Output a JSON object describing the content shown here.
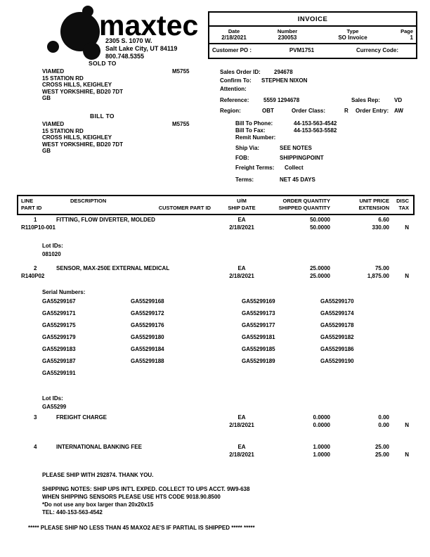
{
  "logo": {
    "brand": "maxtec",
    "address_line1": "2305 S. 1070 W.",
    "address_line2": "Salt Lake City, UT 84119",
    "phone": "800.748.5355"
  },
  "invoice_box": {
    "title": "INVOICE",
    "date_label": "Date",
    "date": "2/18/2021",
    "number_label": "Number",
    "number": "230053",
    "type_label": "Type",
    "type": "SO Invoice",
    "page_label": "Page",
    "page": "1",
    "customer_po_label": "Customer PO :",
    "customer_po": "PVM1751",
    "currency_code_label": "Currency Code:",
    "currency_code": ""
  },
  "sold_to": {
    "heading": "SOLD TO",
    "name": "VIAMED",
    "address": [
      "15 STATION RD",
      "CROSS HILLS, KEIGHLEY",
      "WEST YORKSHIRE, BD20 7DT",
      "GB"
    ],
    "code": "M5755"
  },
  "bill_to": {
    "heading": "BILL TO",
    "name": "VIAMED",
    "address": [
      "15 STATION RD",
      "CROSS HILLS, KEIGHLEY",
      "WEST YORKSHIRE, BD20 7DT",
      "GB"
    ],
    "code": "M5755"
  },
  "order_info": {
    "sales_order_id_label": "Sales Order ID:",
    "sales_order_id": "294678",
    "confirm_to_label": "Confirm To:",
    "confirm_to": "STEPHEN NIXON",
    "attention_label": "Attention:",
    "attention": "",
    "reference_label": "Reference:",
    "reference": "5559 1294678",
    "sales_rep_label": "Sales Rep:",
    "sales_rep": "VD",
    "region_label": "Region:",
    "region": "OBT",
    "order_class_label": "Order Class:",
    "order_class": "R",
    "order_entry_label": "Order Entry:",
    "order_entry": "AW",
    "bill_to_phone_label": "Bill To Phone:",
    "bill_to_phone": "44-153-563-4542",
    "bill_to_fax_label": "Bill To Fax:",
    "bill_to_fax": "44-153-563-5582",
    "remit_number_label": "Remit Number:",
    "remit_number": "",
    "ship_via_label": "Ship Via:",
    "ship_via": "SEE NOTES",
    "fob_label": "FOB:",
    "fob": "SHIPPINGPOINT",
    "freight_terms_label": "Freight Terms:",
    "freight_terms": "Collect",
    "terms_label": "Terms:",
    "terms": "NET 45 DAYS"
  },
  "table": {
    "col_headers": {
      "line": "LINE",
      "part_id": "PART ID",
      "description": "DESCRIPTION",
      "customer_part_id": "CUSTOMER PART ID",
      "um": "U/M",
      "ship_date": "SHIP DATE",
      "order_qty": "ORDER QUANTITY",
      "shipped_qty": "SHIPPED QUANTITY",
      "unit_price": "UNIT PRICE",
      "extension": "EXTENSION",
      "disc": "DISC",
      "tax": "TAX"
    },
    "items": [
      {
        "line": "1",
        "description": "FITTING, FLOW DIVERTER, MOLDED",
        "part_id": "R110P10-001",
        "customer_part_id": "",
        "um": "EA",
        "ship_date": "2/18/2021",
        "order_qty": "50.0000",
        "shipped_qty": "50.0000",
        "unit_price": "6.60",
        "extension": "330.00",
        "tax": "N",
        "lot_ids_label": "Lot IDs:",
        "lot_ids": "081020"
      },
      {
        "line": "2",
        "description": "SENSOR, MAX-250E EXTERNAL MEDICAL",
        "part_id": "R140P02",
        "customer_part_id": "",
        "um": "EA",
        "ship_date": "2/18/2021",
        "order_qty": "25.0000",
        "shipped_qty": "25.0000",
        "unit_price": "75.00",
        "extension": "1,875.00",
        "tax": "N",
        "serial_numbers_label": "Serial Numbers:",
        "serials": [
          "GA55299167",
          "GA55299168",
          "GA55299169",
          "GA55299170",
          "GA55299171",
          "GA55299172",
          "GA55299173",
          "GA55299174",
          "GA55299175",
          "GA55299176",
          "GA55299177",
          "GA55299178",
          "GA55299179",
          "GA55299180",
          "GA55299181",
          "GA55299182",
          "GA55299183",
          "GA55299184",
          "GA55299185",
          "GA55299186",
          "GA55299187",
          "GA55299188",
          "GA55299189",
          "GA55299190",
          "GA55299191"
        ],
        "lot_ids_label": "Lot IDs:",
        "lot_ids": "GA55299"
      },
      {
        "line": "3",
        "description": "FREIGHT CHARGE",
        "part_id": "",
        "customer_part_id": "",
        "um": "EA",
        "ship_date": "2/18/2021",
        "order_qty": "0.0000",
        "shipped_qty": "0.0000",
        "unit_price": "0.00",
        "extension": "0.00",
        "tax": "N"
      },
      {
        "line": "4",
        "description": "INTERNATIONAL BANKING FEE",
        "part_id": "",
        "customer_part_id": "",
        "um": "EA",
        "ship_date": "2/18/2021",
        "order_qty": "1.0000",
        "shipped_qty": "1.0000",
        "unit_price": "25.00",
        "extension": "25.00",
        "tax": "N"
      }
    ]
  },
  "footer": {
    "note1": "PLEASE SHIP WITH 292874. THANK YOU.",
    "shipping_note1": "SHIPPING NOTES: SHIP UPS INT'L EXPED. COLLECT TO UPS ACCT. 9W9-638",
    "shipping_note2": "WHEN SHIPPING SENSORS PLEASE USE HTS CODE 9018.90.8500",
    "box_note": "*Do not use any box larger than 20x20x15",
    "tel": "TEL: 440-153-563-4542",
    "partial_note": "*****  PLEASE SHIP NO LESS THAN 45 MAXO2 AE'S IF PARTIAL IS SHIPPED ***** *****"
  }
}
